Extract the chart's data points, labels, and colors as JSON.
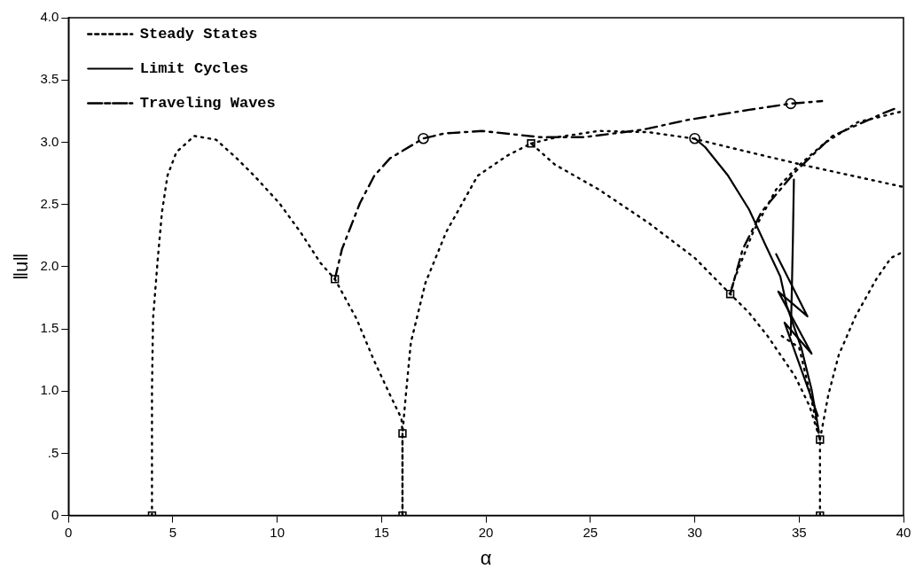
{
  "chart_data": {
    "type": "line",
    "xlabel": "α",
    "ylabel": "‖u‖",
    "xlim": [
      0,
      40
    ],
    "xticks": [
      0,
      5,
      10,
      15,
      20,
      25,
      30,
      35,
      40
    ],
    "ylim": [
      0,
      4
    ],
    "yticks": [
      0,
      {
        "value": 0.5,
        "label": ".5"
      },
      {
        "value": 1,
        "label": "1.0"
      },
      {
        "value": 1.5,
        "label": "1.5"
      },
      {
        "value": 2,
        "label": "2.0"
      },
      {
        "value": 2.5,
        "label": "2.5"
      },
      {
        "value": 3,
        "label": "3.0"
      },
      {
        "value": 3.5,
        "label": "3.5"
      },
      {
        "value": 4,
        "label": "4.0"
      }
    ],
    "grid": false,
    "legend": "top left",
    "series": [
      {
        "name": "Steady States",
        "type": "line",
        "line_style": "dotted",
        "color": "#000000",
        "x": [
          4,
          4,
          4.05,
          4.27,
          4.48,
          4.74,
          5.17,
          6.03,
          7.07,
          8.06,
          8.9,
          10.1,
          11.1,
          12.07,
          12.76,
          13.8,
          14.65,
          15.4,
          15.95,
          16,
          16
        ],
        "values": [
          0,
          1.01,
          1.58,
          2.05,
          2.44,
          2.73,
          2.92,
          3.05,
          3.02,
          2.87,
          2.73,
          2.51,
          2.28,
          2.03,
          1.9,
          1.58,
          1.24,
          0.97,
          0.78,
          0.66,
          0
        ]
      },
      {
        "name": "Limit Cycles",
        "type": "line",
        "line_style": "solid",
        "color": "#000000",
        "x": [
          30,
          30.5,
          31.6,
          32.6,
          33.4,
          34.1,
          34.4,
          35.1,
          35.6,
          35.95
        ],
        "values": [
          3.03,
          2.96,
          2.73,
          2.46,
          2.17,
          1.92,
          1.69,
          1.35,
          1.01,
          0.67
        ]
      },
      {
        "name": "Traveling Waves",
        "type": "line",
        "line_style": "dashed",
        "color": "#000000",
        "x": [
          12.76,
          13.1,
          13.96,
          14.65,
          15.4,
          17,
          18,
          19.8,
          22.6,
          24.7,
          27.5,
          29.7,
          32.6,
          34.6,
          36.1
        ],
        "values": [
          1.9,
          2.14,
          2.51,
          2.73,
          2.87,
          3.03,
          3.07,
          3.09,
          3.04,
          3.04,
          3.1,
          3.18,
          3.26,
          3.31,
          3.33
        ]
      },
      {
        "line_style": "dotted",
        "color": "#000000",
        "x": [
          16,
          16,
          16.15,
          16.4,
          17.1,
          18.1,
          19.6,
          21,
          22.16,
          23.3,
          25.4,
          27.8,
          30,
          31.7,
          32.6,
          33.5,
          34.8,
          35.5,
          36,
          36
        ],
        "values": [
          0,
          0.66,
          0.95,
          1.39,
          1.87,
          2.28,
          2.73,
          2.89,
          2.99,
          2.82,
          2.62,
          2.35,
          2.07,
          1.78,
          1.63,
          1.44,
          1.12,
          0.88,
          0.61,
          0
        ]
      },
      {
        "line_style": "dotted",
        "color": "#000000",
        "x": [
          22.16,
          23.4,
          25.4,
          27.8,
          29.9,
          32.6,
          35.1,
          40
        ],
        "values": [
          2.99,
          3.04,
          3.09,
          3.08,
          3.03,
          2.92,
          2.82,
          2.64
        ]
      },
      {
        "line_style": "dotted",
        "color": "#000000",
        "x": [
          31.7,
          31.9,
          32.8,
          33.9,
          34.9,
          36.2,
          37.8,
          40
        ],
        "values": [
          1.78,
          1.9,
          2.28,
          2.62,
          2.8,
          2.99,
          3.16,
          3.25
        ]
      },
      {
        "line_style": "dotted",
        "color": "#000000",
        "x": [
          36,
          36.4,
          36.9,
          37.7,
          38.7,
          39.4,
          40
        ],
        "values": [
          0.61,
          0.97,
          1.29,
          1.6,
          1.9,
          2.07,
          2.12
        ]
      },
      {
        "line_style": "dotted",
        "color": "#000000",
        "x": [
          36,
          35.5,
          35,
          34.1
        ],
        "values": [
          0.61,
          1,
          1.35,
          1.45
        ]
      },
      {
        "line_style": "solid",
        "color": "#000000",
        "x": [
          34.75,
          34.7,
          34.65,
          34.6
        ],
        "values": [
          2.7,
          2.2,
          1.8,
          1.45
        ]
      },
      {
        "line_style": "solid",
        "color": "#000000",
        "x": [
          33.9,
          35.4,
          34,
          35.6,
          34.3,
          35.9
        ],
        "values": [
          2.1,
          1.6,
          1.8,
          1.3,
          1.55,
          0.8
        ]
      },
      {
        "line_style": "dashed",
        "color": "#000000",
        "x": [
          31.7,
          32.3,
          33.2,
          34.8,
          36.6,
          39,
          39.6
        ],
        "values": [
          1.78,
          2.14,
          2.44,
          2.76,
          3.05,
          3.23,
          3.27
        ]
      },
      {
        "type": "scatter",
        "marker": "square",
        "color": "#000000",
        "x": [
          4,
          16,
          36,
          12.76,
          16,
          22.16,
          31.7,
          36
        ],
        "values": [
          0,
          0,
          0,
          1.9,
          0.66,
          2.99,
          1.78,
          0.61
        ]
      },
      {
        "type": "scatter",
        "marker": "circle",
        "color": "#000000",
        "x": [
          17,
          30,
          34.6
        ],
        "values": [
          3.03,
          3.03,
          3.31
        ]
      }
    ]
  }
}
